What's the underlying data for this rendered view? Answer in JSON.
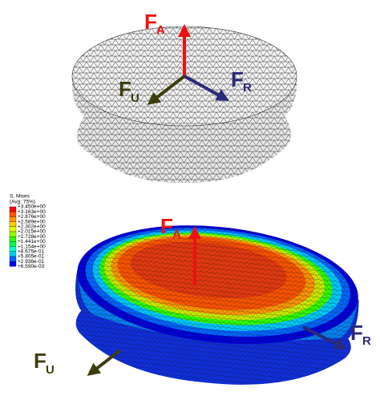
{
  "top_panel": {
    "force_labels": [
      {
        "symbol": "F",
        "subscript": "A"
      },
      {
        "symbol": "F",
        "subscript": "U"
      },
      {
        "symbol": "F",
        "subscript": "R"
      }
    ]
  },
  "bottom_panel": {
    "legend": {
      "title": "S, Mises",
      "subtitle": "(Avg: 75%)",
      "values": [
        "+3.450e+00",
        "+3.163e+00",
        "+2.876e+00",
        "+2.589e+00",
        "+2.302e+00",
        "+2.015e+00",
        "+1.728e+00",
        "+1.441e+00",
        "+1.154e+00",
        "+8.675e-01",
        "+5.805e-01",
        "+2.936e-01",
        "+6.590e-03"
      ],
      "colors": [
        "#ff0000",
        "#ff5500",
        "#ff9900",
        "#ffcc00",
        "#e6ff00",
        "#99ff00",
        "#33ff00",
        "#00ff55",
        "#00ffcc",
        "#00ccff",
        "#0066ff",
        "#0000ff"
      ]
    },
    "force_labels": [
      {
        "symbol": "F",
        "subscript": "A"
      },
      {
        "symbol": "F",
        "subscript": "R"
      },
      {
        "symbol": "F",
        "subscript": "U"
      }
    ]
  }
}
